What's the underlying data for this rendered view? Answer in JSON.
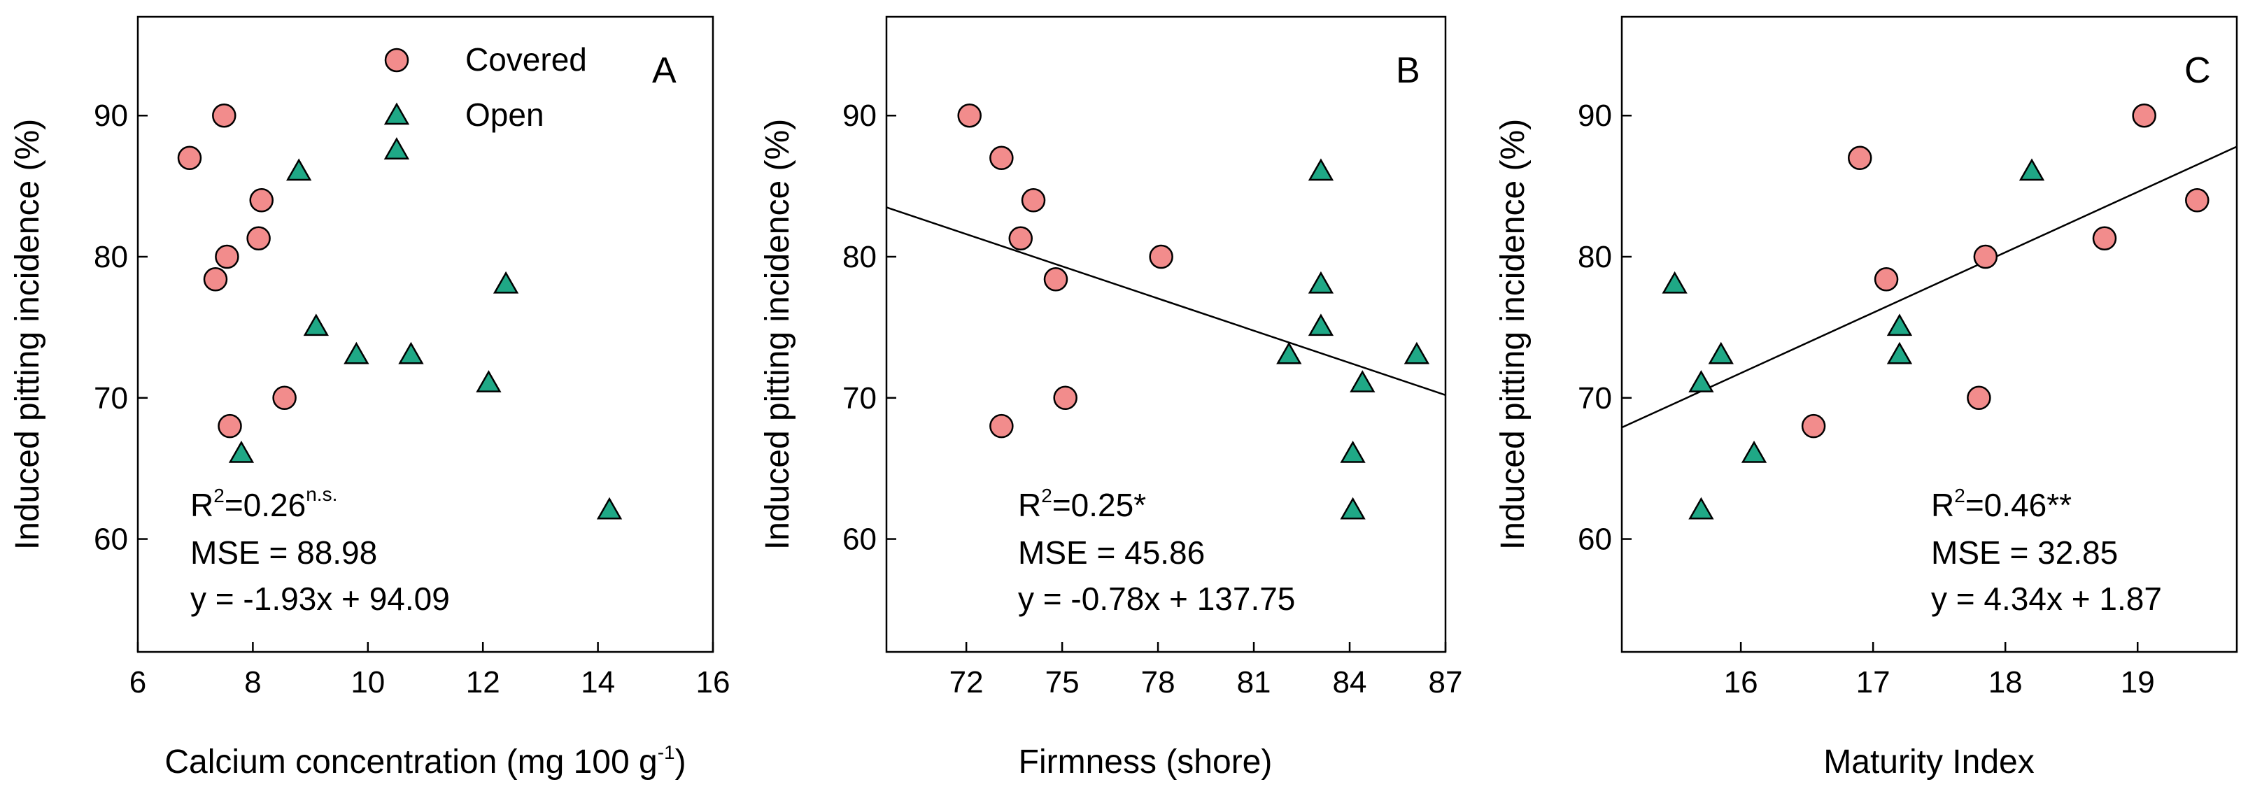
{
  "chart_data": [
    {
      "type": "scatter",
      "panel": "A",
      "xlabel": "Calcium concentration (mg 100 g",
      "xlabel_sup": "-1",
      "xlabel_end": ")",
      "ylabel": "Induced pitting incidence (%)",
      "xlim": [
        6,
        16
      ],
      "ylim": [
        52,
        97
      ],
      "xticks": [
        6,
        8,
        10,
        12,
        14,
        16
      ],
      "yticks": [
        60,
        70,
        80,
        90
      ],
      "legend": [
        {
          "name": "Covered",
          "marker": "circle"
        },
        {
          "name": "Open",
          "marker": "triangle"
        }
      ],
      "series": [
        {
          "name": "Covered",
          "marker": "circle",
          "color": "#f28c8c",
          "points": [
            [
              6.9,
              87
            ],
            [
              7.5,
              90
            ],
            [
              7.55,
              80
            ],
            [
              8.15,
              84
            ],
            [
              8.1,
              81.3
            ],
            [
              7.35,
              78.4
            ],
            [
              8.55,
              70
            ],
            [
              7.6,
              68
            ]
          ]
        },
        {
          "name": "Open",
          "marker": "triangle",
          "color": "#1fa886",
          "points": [
            [
              8.8,
              86
            ],
            [
              10.5,
              87.5
            ],
            [
              9.1,
              75
            ],
            [
              9.8,
              73
            ],
            [
              10.75,
              73
            ],
            [
              12.4,
              78
            ],
            [
              12.1,
              71
            ],
            [
              7.8,
              66
            ],
            [
              14.2,
              62
            ]
          ]
        }
      ],
      "fit": null,
      "stats": {
        "r2_text": "R",
        "r2_sup": "2",
        "r2_value": "=0.26",
        "r2_sig": "n.s.",
        "mse": "MSE = 88.98",
        "equation": "y = -1.93x + 94.09"
      }
    },
    {
      "type": "scatter",
      "panel": "B",
      "xlabel": "Firmness (shore)",
      "ylabel": "Induced pitting incidence (%)",
      "xlim": [
        69.5,
        87
      ],
      "ylim": [
        52,
        97
      ],
      "xticks": [
        72,
        75,
        78,
        81,
        84,
        87
      ],
      "yticks": [
        60,
        70,
        80,
        90
      ],
      "series": [
        {
          "name": "Covered",
          "marker": "circle",
          "color": "#f28c8c",
          "points": [
            [
              72.1,
              90
            ],
            [
              73.1,
              87
            ],
            [
              74.1,
              84
            ],
            [
              73.7,
              81.3
            ],
            [
              78.1,
              80
            ],
            [
              74.8,
              78.4
            ],
            [
              75.1,
              70
            ],
            [
              73.1,
              68
            ]
          ]
        },
        {
          "name": "Open",
          "marker": "triangle",
          "color": "#1fa886",
          "points": [
            [
              83.1,
              86
            ],
            [
              83.1,
              78
            ],
            [
              83.1,
              75
            ],
            [
              82.1,
              73
            ],
            [
              86.1,
              73
            ],
            [
              84.4,
              71
            ],
            [
              84.1,
              66
            ],
            [
              84.1,
              62
            ]
          ]
        }
      ],
      "fit": {
        "x": [
          69.5,
          87
        ],
        "y": [
          83.5,
          70.2
        ]
      },
      "stats": {
        "r2_text": "R",
        "r2_sup": "2",
        "r2_value": "=0.25*",
        "r2_sig": "",
        "mse": "MSE = 45.86",
        "equation": "y = -0.78x + 137.75"
      }
    },
    {
      "type": "scatter",
      "panel": "C",
      "xlabel": "Maturity Index",
      "ylabel": "Induced pitting incidence (%)",
      "xlim": [
        15.1,
        19.75
      ],
      "ylim": [
        52,
        97
      ],
      "xticks": [
        16,
        17,
        18,
        19
      ],
      "yticks": [
        60,
        70,
        80,
        90
      ],
      "series": [
        {
          "name": "Covered",
          "marker": "circle",
          "color": "#f28c8c",
          "points": [
            [
              19.05,
              90
            ],
            [
              16.9,
              87
            ],
            [
              19.45,
              84
            ],
            [
              18.75,
              81.3
            ],
            [
              17.85,
              80
            ],
            [
              17.1,
              78.4
            ],
            [
              17.8,
              70
            ],
            [
              16.55,
              68
            ]
          ]
        },
        {
          "name": "Open",
          "marker": "triangle",
          "color": "#1fa886",
          "points": [
            [
              18.2,
              86
            ],
            [
              15.5,
              78
            ],
            [
              17.2,
              75
            ],
            [
              15.85,
              73
            ],
            [
              17.2,
              73
            ],
            [
              15.7,
              71
            ],
            [
              16.1,
              66
            ],
            [
              15.7,
              62
            ]
          ]
        }
      ],
      "fit": {
        "x": [
          15.1,
          19.75
        ],
        "y": [
          67.9,
          87.8
        ]
      },
      "stats": {
        "r2_text": "R",
        "r2_sup": "2",
        "r2_value": "=0.46**",
        "r2_sig": "",
        "mse": "MSE = 32.85",
        "equation": "y = 4.34x + 1.87"
      }
    }
  ]
}
